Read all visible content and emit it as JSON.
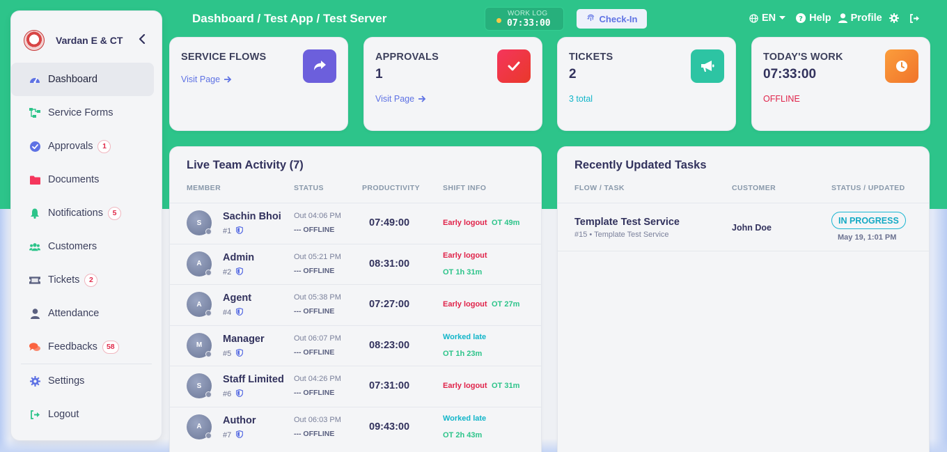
{
  "sidebar": {
    "brand_name": "Vardan E & CT",
    "items": [
      {
        "label": "Dashboard",
        "icon": "dashboard-gauge-icon",
        "color": "#5e72e4"
      },
      {
        "label": "Service Forms",
        "icon": "flow-icon",
        "color": "#2dc48a"
      },
      {
        "label": "Approvals",
        "icon": "check-circle-icon",
        "color": "#5e72e4",
        "badge": "1"
      },
      {
        "label": "Documents",
        "icon": "folder-icon",
        "color": "#f5365c"
      },
      {
        "label": "Notifications",
        "icon": "bell-icon",
        "color": "#2dc48a",
        "badge": "5"
      },
      {
        "label": "Customers",
        "icon": "users-icon",
        "color": "#2dc48a"
      },
      {
        "label": "Tickets",
        "icon": "ticket-icon",
        "color": "#5a6080",
        "badge": "2"
      },
      {
        "label": "Attendance",
        "icon": "user-icon",
        "color": "#5a6080"
      },
      {
        "label": "Feedbacks",
        "icon": "comments-icon",
        "color": "#fb6340",
        "badge": "58"
      },
      {
        "label": "Settings",
        "icon": "gear-icon",
        "color": "#5e72e4"
      },
      {
        "label": "Logout",
        "icon": "logout-icon",
        "color": "#2dc48a"
      }
    ]
  },
  "header": {
    "breadcrumb": "Dashboard / Test App / Test Server",
    "worklog_label": "WORK LOG",
    "worklog_time": "07:33:00",
    "checkin_label": "Check-In",
    "language": "EN",
    "help": "Help",
    "profile": "Profile"
  },
  "stats": {
    "service_flows": {
      "title": "SERVICE FLOWS",
      "link": "Visit Page",
      "color": "#6c5fdc"
    },
    "approvals": {
      "title": "APPROVALS",
      "value": "1",
      "link": "Visit Page",
      "color": "#f5365c"
    },
    "tickets": {
      "title": "TICKETS",
      "value": "2",
      "sub": "3 total",
      "color": "#2dc4a3"
    },
    "todays_work": {
      "title": "TODAY'S WORK",
      "value": "07:33:00",
      "sub": "OFFLINE",
      "color": "#fb8c3c"
    }
  },
  "activity": {
    "title": "Live Team Activity (7)",
    "columns": [
      "MEMBER",
      "STATUS",
      "PRODUCTIVITY",
      "SHIFT INFO"
    ],
    "rows": [
      {
        "initial": "S",
        "name": "Sachin Bhoi",
        "id": "#1",
        "out": "Out 04:06 PM",
        "status": "--- OFFLINE",
        "productivity": "07:49:00",
        "shift_a": "Early logout",
        "shift_b": "OT 49m",
        "layout": "inline",
        "a_color": "red"
      },
      {
        "initial": "A",
        "name": "Admin",
        "id": "#2",
        "out": "Out 05:21 PM",
        "status": "--- OFFLINE",
        "productivity": "08:31:00",
        "shift_a": "Early logout",
        "shift_b": "OT 1h 31m",
        "layout": "stack",
        "a_color": "red"
      },
      {
        "initial": "A",
        "name": "Agent",
        "id": "#4",
        "out": "Out 05:38 PM",
        "status": "--- OFFLINE",
        "productivity": "07:27:00",
        "shift_a": "Early logout",
        "shift_b": "OT 27m",
        "layout": "inline",
        "a_color": "red"
      },
      {
        "initial": "M",
        "name": "Manager",
        "id": "#5",
        "out": "Out 06:07 PM",
        "status": "--- OFFLINE",
        "productivity": "08:23:00",
        "shift_a": "Worked late",
        "shift_b": "OT 1h 23m",
        "layout": "stack",
        "a_color": "cyan"
      },
      {
        "initial": "S",
        "name": "Staff Limited",
        "id": "#6",
        "out": "Out 04:26 PM",
        "status": "--- OFFLINE",
        "productivity": "07:31:00",
        "shift_a": "Early logout",
        "shift_b": "OT 31m",
        "layout": "inline",
        "a_color": "red"
      },
      {
        "initial": "A",
        "name": "Author",
        "id": "#7",
        "out": "Out 06:03 PM",
        "status": "--- OFFLINE",
        "productivity": "09:43:00",
        "shift_a": "Worked late",
        "shift_b": "OT 2h 43m",
        "layout": "stack",
        "a_color": "cyan"
      }
    ]
  },
  "tasks": {
    "title": "Recently Updated Tasks",
    "columns": [
      "FLOW / TASK",
      "CUSTOMER",
      "STATUS / UPDATED"
    ],
    "rows": [
      {
        "name": "Template Test Service",
        "meta": "#15 • Template Test Service",
        "customer": "John Doe",
        "status": "IN PROGRESS",
        "updated": "May 19, 1:01 PM"
      }
    ]
  }
}
